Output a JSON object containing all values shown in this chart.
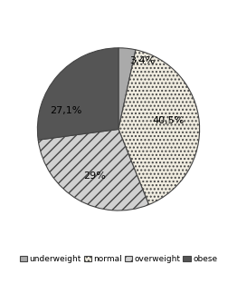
{
  "values": [
    3.4,
    40.5,
    29.0,
    27.1
  ],
  "labels": [
    "3,4%",
    "40,5%",
    "29%",
    "27,1%"
  ],
  "legend_labels": [
    "underweight",
    "normal",
    "overweight",
    "obese"
  ],
  "colors": [
    "#aaaaaa",
    "#f0ece0",
    "#d0d0d0",
    "#555555"
  ],
  "hatches": [
    "",
    "....",
    "///",
    ""
  ],
  "explode": [
    0.0,
    0.0,
    0.0,
    0.0
  ],
  "startangle": 90,
  "font_size": 8,
  "legend_font_size": 6.5
}
